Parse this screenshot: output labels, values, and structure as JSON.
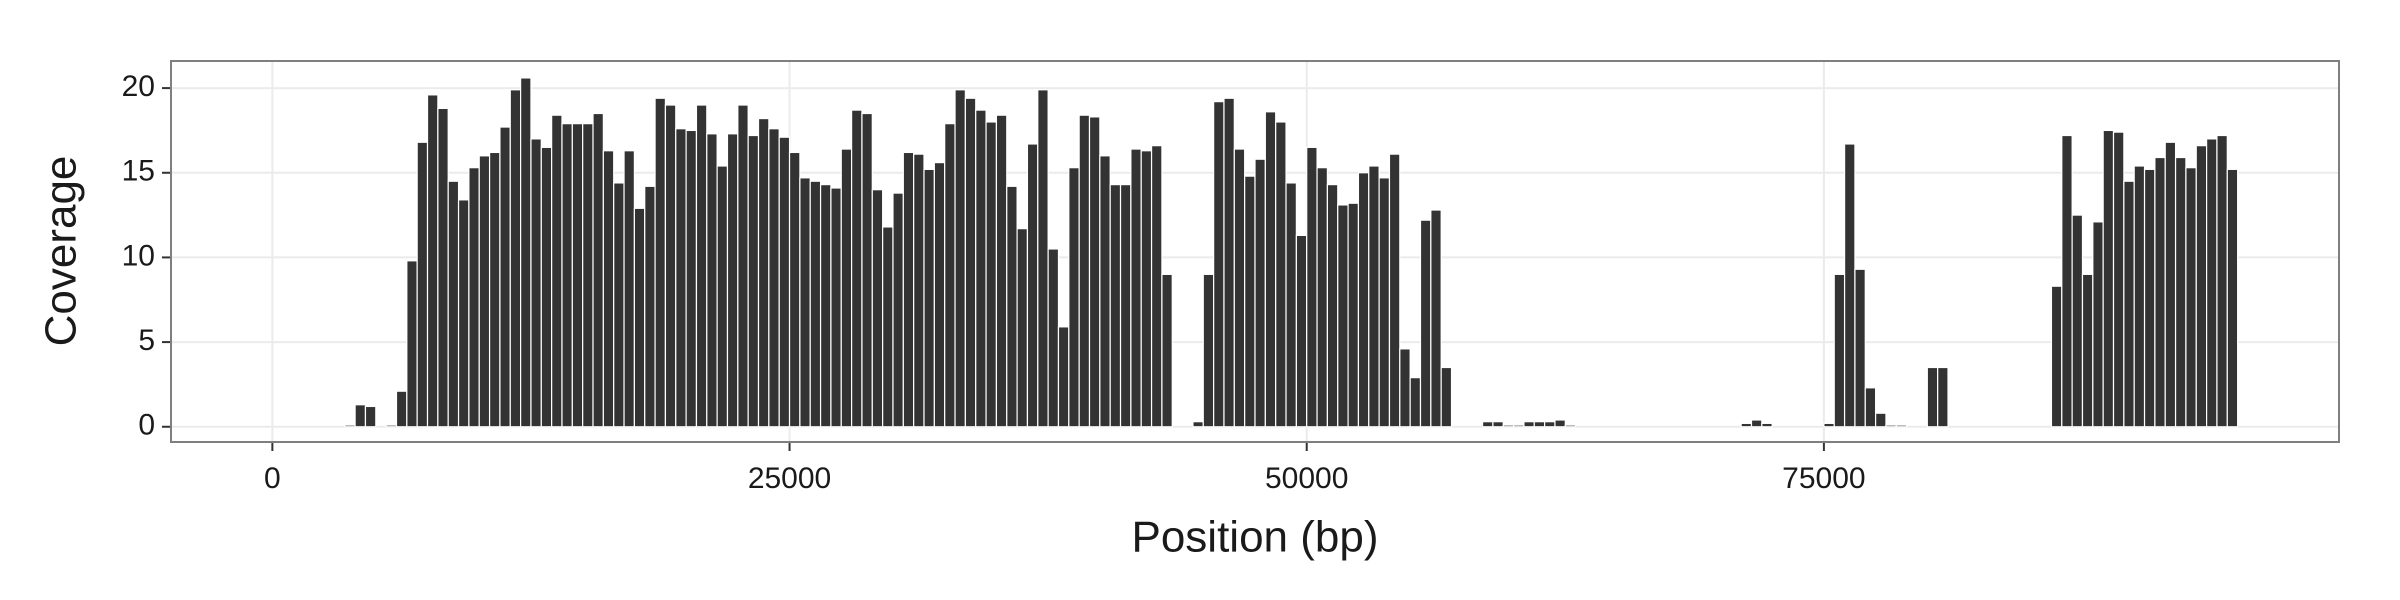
{
  "chart_data": {
    "type": "histogram",
    "x_label": "Position (bp)",
    "y_label": "Coverage",
    "color": "#333333",
    "grid": true,
    "xlim": [
      -4900,
      99900
    ],
    "ylim": [
      -0.9,
      21.6
    ],
    "xticks": [
      0,
      25000,
      50000,
      75000
    ],
    "yticks": [
      0,
      5,
      10,
      15,
      20
    ],
    "bins": [
      0,
      500,
      1000,
      1500,
      2000,
      2500,
      3000,
      3500,
      4000,
      4500,
      5000,
      5500,
      6000,
      6500,
      7000,
      7500,
      8000,
      8500,
      9000,
      9500,
      10000,
      10500,
      11000,
      11500,
      12000,
      12500,
      13000,
      13500,
      14000,
      14500,
      15000,
      15500,
      16000,
      16500,
      17000,
      17500,
      18000,
      18500,
      19000,
      19500,
      20000,
      20500,
      21000,
      21500,
      22000,
      22500,
      23000,
      23500,
      24000,
      24500,
      25000,
      25500,
      26000,
      26500,
      27000,
      27500,
      28000,
      28500,
      29000,
      29500,
      30000,
      30500,
      31000,
      31500,
      32000,
      32500,
      33000,
      33500,
      34000,
      34500,
      35000,
      35500,
      36000,
      36500,
      37000,
      37500,
      38000,
      38500,
      39000,
      39500,
      40000,
      40500,
      41000,
      41500,
      42000,
      42500,
      43000,
      43500,
      44000,
      44500,
      45000,
      45500,
      46000,
      46500,
      47000,
      47500,
      48000,
      48500,
      49000,
      49500,
      50000,
      50500,
      51000,
      51500,
      52000,
      52500,
      53000,
      53500,
      54000,
      54500,
      55000,
      55500,
      56000,
      56500,
      57000,
      57500,
      58000,
      58500,
      59000,
      59500,
      60000,
      60500,
      61000,
      61500,
      62000,
      62500,
      63000,
      63500,
      64000,
      64500,
      65000,
      65500,
      66000,
      66500,
      67000,
      67500,
      68000,
      68500,
      69000,
      69500,
      70000,
      70500,
      71000,
      71500,
      72000,
      72500,
      73000,
      73500,
      74000,
      74500,
      75000,
      75500,
      76000,
      76500,
      77000,
      77500,
      78000,
      78500,
      79000,
      79500,
      80000,
      80500,
      81000,
      81500,
      82000,
      82500,
      83000,
      83500,
      84000,
      84500,
      85000,
      85500,
      86000,
      86500,
      87000,
      87500,
      88000,
      88500,
      89000,
      89500,
      90000,
      90500,
      91000,
      91500,
      92000,
      92500,
      93000,
      93500,
      94000,
      94500,
      95000
    ],
    "values": [
      0,
      0,
      0,
      0,
      0,
      0,
      0,
      0.1,
      1.3,
      1.2,
      0,
      0.1,
      2.1,
      9.8,
      16.8,
      19.6,
      18.8,
      14.5,
      13.4,
      15.3,
      16.0,
      16.2,
      17.7,
      19.9,
      20.6,
      17.0,
      16.5,
      18.4,
      17.9,
      17.9,
      17.9,
      18.5,
      16.3,
      14.4,
      16.3,
      12.9,
      14.2,
      19.4,
      19.0,
      17.6,
      17.5,
      19.0,
      17.3,
      15.4,
      17.3,
      19.0,
      17.2,
      18.2,
      17.6,
      17.1,
      16.2,
      14.7,
      14.5,
      14.3,
      14.1,
      16.4,
      18.7,
      18.5,
      14.0,
      11.8,
      13.8,
      16.2,
      16.1,
      15.2,
      15.6,
      17.9,
      19.9,
      19.4,
      18.7,
      18.0,
      18.4,
      14.2,
      11.7,
      16.7,
      19.9,
      10.5,
      5.9,
      15.3,
      18.4,
      18.3,
      16.0,
      14.3,
      14.3,
      16.4,
      16.3,
      16.6,
      9.0,
      0,
      0,
      0.3,
      9.0,
      19.2,
      19.4,
      16.4,
      14.8,
      15.8,
      18.6,
      18.0,
      14.4,
      11.3,
      16.5,
      15.3,
      14.3,
      13.1,
      13.2,
      15.0,
      15.4,
      14.7,
      16.1,
      4.6,
      2.9,
      12.2,
      12.8,
      3.5,
      0,
      0,
      0,
      0.3,
      0.3,
      0.1,
      0.1,
      0.3,
      0.3,
      0.3,
      0.4,
      0.1,
      0,
      0,
      0,
      0,
      0,
      0,
      0,
      0,
      0,
      0,
      0,
      0,
      0,
      0,
      0,
      0,
      0.2,
      0.4,
      0.2,
      0,
      0,
      0,
      0,
      0,
      0.2,
      9.0,
      16.7,
      9.3,
      2.3,
      0.8,
      0.1,
      0.1,
      0,
      0,
      3.5,
      3.5,
      0,
      0,
      0,
      0,
      0,
      0,
      0,
      0,
      0,
      0,
      8.3,
      17.2,
      12.5,
      9.0,
      12.1,
      17.5,
      17.4,
      14.5,
      15.4,
      15.2,
      15.9,
      16.8,
      15.9,
      15.3,
      16.6,
      17.0,
      17.2,
      15.2
    ]
  }
}
